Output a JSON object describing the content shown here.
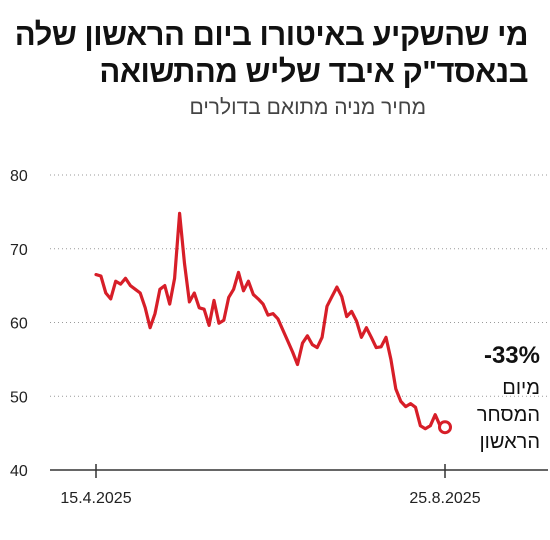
{
  "chart_data": {
    "type": "line",
    "title": "מי שהשקיע באיטורו ביום הראשון שלה בנאסד\"ק איבד שליש מהתשואה",
    "subtitle": "מחיר מניה מתואם בדולרים",
    "xlabel": "",
    "ylabel": "",
    "ylim": [
      40,
      80
    ],
    "y_ticks": [
      40,
      50,
      60,
      70,
      80
    ],
    "grid": true,
    "x_tick_labels": [
      "15.4.2025",
      "25.8.2025"
    ],
    "line_color": "#d71e28",
    "series": [
      {
        "values": [
          66.5,
          66.3,
          64.0,
          63.2,
          65.6,
          65.2,
          66.0,
          65.0,
          64.5,
          64.0,
          62.0,
          59.3,
          61.2,
          64.5,
          65.0,
          62.5,
          66.0,
          74.8,
          68.0,
          62.8,
          64.0,
          62.0,
          61.8,
          59.6,
          63.0,
          59.9,
          60.3,
          63.4,
          64.5,
          66.8,
          64.3,
          65.6,
          63.8,
          63.2,
          62.5,
          61.0,
          61.2,
          60.5,
          59.0,
          57.5,
          56.0,
          54.3,
          57.2,
          58.2,
          57.0,
          56.6,
          58.0,
          62.2,
          63.5,
          64.8,
          63.5,
          60.8,
          61.5,
          60.2,
          58.0,
          59.3,
          58.0,
          56.6,
          56.7,
          58.0,
          55.0,
          51.0,
          49.3,
          48.6,
          49.0,
          48.5,
          46.0,
          45.6,
          46.0,
          47.5,
          46.0,
          45.8
        ]
      }
    ],
    "annotation": {
      "value": "-33%",
      "lines": [
        "מיום",
        "המסחר",
        "הראשון"
      ]
    }
  }
}
